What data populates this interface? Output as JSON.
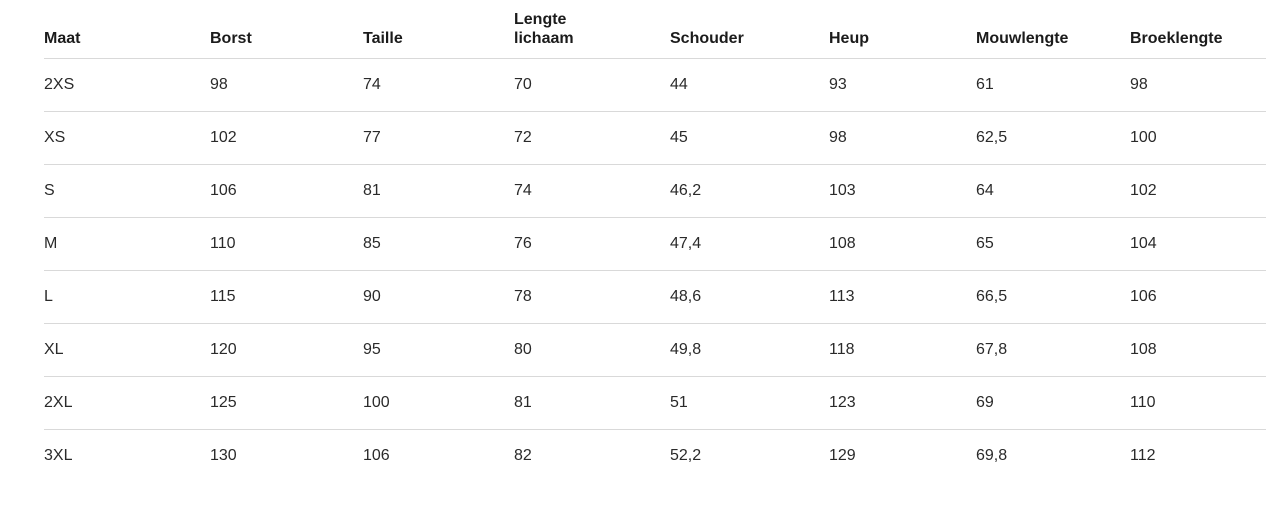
{
  "colors": {
    "header_text": "#1b1b1b",
    "cell_text": "#2a2a2a",
    "row_border": "#d9d9d9",
    "page_bg": "#ffffff"
  },
  "size_chart": {
    "columns": [
      "Maat",
      "Borst",
      "Taille",
      "Lengte lichaam",
      "Schouder",
      "Heup",
      "Mouwlengte",
      "Broeklengte"
    ],
    "rows": [
      [
        "2XS",
        "98",
        "74",
        "70",
        "44",
        "93",
        "61",
        "98"
      ],
      [
        "XS",
        "102",
        "77",
        "72",
        "45",
        "98",
        "62,5",
        "100"
      ],
      [
        "S",
        "106",
        "81",
        "74",
        "46,2",
        "103",
        "64",
        "102"
      ],
      [
        "M",
        "110",
        "85",
        "76",
        "47,4",
        "108",
        "65",
        "104"
      ],
      [
        "L",
        "115",
        "90",
        "78",
        "48,6",
        "113",
        "66,5",
        "106"
      ],
      [
        "XL",
        "120",
        "95",
        "80",
        "49,8",
        "118",
        "67,8",
        "108"
      ],
      [
        "2XL",
        "125",
        "100",
        "81",
        "51",
        "123",
        "69",
        "110"
      ],
      [
        "3XL",
        "130",
        "106",
        "82",
        "52,2",
        "129",
        "69,8",
        "112"
      ]
    ]
  }
}
